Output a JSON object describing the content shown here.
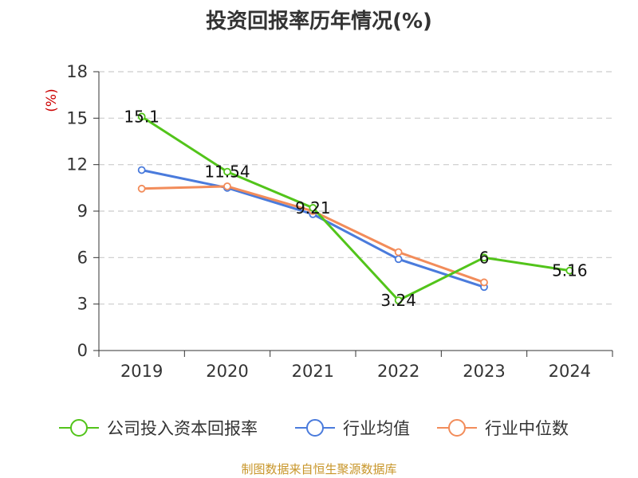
{
  "title": "投资回报率历年情况(%)",
  "source": "制图数据来自恒生聚源数据库",
  "chart_data": {
    "type": "line",
    "title": "投资回报率历年情况(%)",
    "y_unit": "(%)",
    "x": [
      "2019",
      "2020",
      "2021",
      "2022",
      "2023",
      "2024"
    ],
    "ylim": [
      0,
      18
    ],
    "yticks": [
      0,
      3,
      6,
      9,
      12,
      15,
      18
    ],
    "grid": true,
    "legend_position": "bottom",
    "series": [
      {
        "name": "公司投入资本回报率",
        "color": "#52c41a",
        "values": [
          15.1,
          11.54,
          9.21,
          3.24,
          6,
          5.16
        ],
        "labels": [
          "15.1",
          "11.54",
          "9.21",
          "3.24",
          "6",
          "5.16"
        ]
      },
      {
        "name": "行业均值",
        "color": "#4a7bdc",
        "values": [
          11.65,
          10.5,
          8.8,
          5.9,
          4.1,
          null
        ],
        "labels": null
      },
      {
        "name": "行业中位数",
        "color": "#f28c5a",
        "values": [
          10.45,
          10.6,
          9.0,
          6.35,
          4.4,
          null
        ],
        "labels": null
      }
    ]
  }
}
